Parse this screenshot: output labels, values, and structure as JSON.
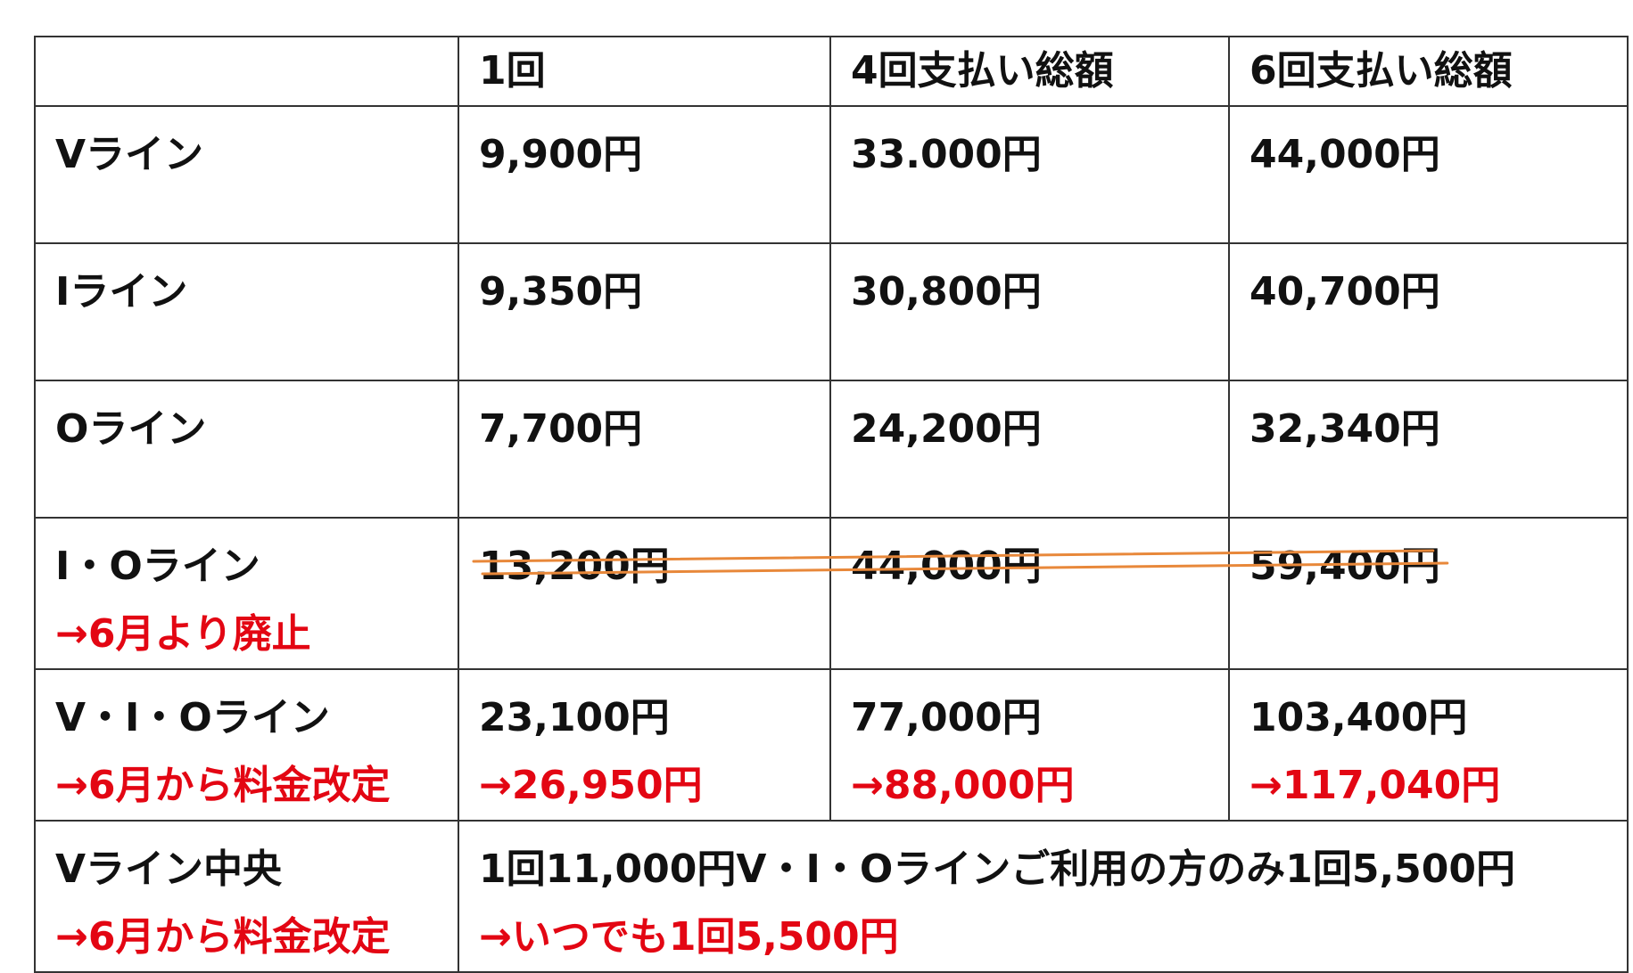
{
  "table": {
    "header": {
      "corner": "",
      "col_once": "1回",
      "col_four": "4回支払い総額",
      "col_six": "6回支払い総額"
    },
    "rows": [
      {
        "name": "Vライン",
        "once": "9,900円",
        "four": "33.000円",
        "six": "44,000円"
      },
      {
        "name": "Iライン",
        "once": "9,350円",
        "four": "30,800円",
        "six": "40,700円"
      },
      {
        "name": "Oライン",
        "once": "7,700円",
        "four": "24,200円",
        "six": "32,340円"
      },
      {
        "name": "I・Oライン",
        "name_note": "→6月より廃止",
        "once": "13,200円",
        "four": "44,000円",
        "six": "59,400円",
        "discontinued": true
      },
      {
        "name": "V・I・Oライン",
        "name_note": "→6月から料金改定",
        "once": "23,100円",
        "once_new": "→26,950円",
        "four": "77,000円",
        "four_new": "→88,000円",
        "six": "103,400円",
        "six_new": "→117,040円"
      },
      {
        "name": "Vライン中央",
        "name_note": "→6月から料金改定",
        "price_text": "1回11,000円V・I・Oラインご利用の方のみ1回5,500円",
        "price_new": "→いつでも1回5,500円"
      }
    ]
  },
  "colors": {
    "note": "#e30613",
    "strike": "#e8883a",
    "border": "#333333"
  }
}
